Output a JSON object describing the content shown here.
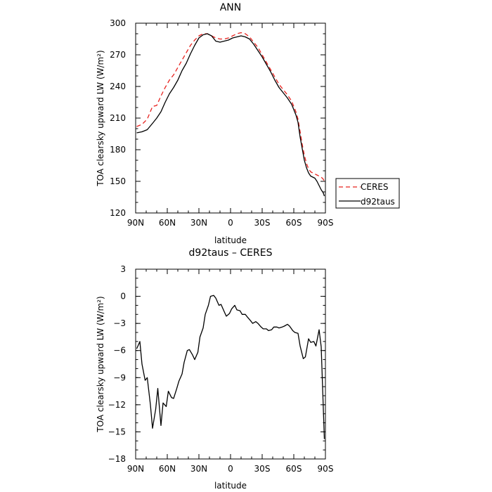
{
  "chart_data": [
    {
      "type": "line",
      "title": "ANN",
      "xlabel": "latitude",
      "ylabel": "TOA clearsky upward LW (W/m²)",
      "xlim": [
        90,
        -90
      ],
      "ylim": [
        120,
        300
      ],
      "xticks": [
        90,
        60,
        30,
        0,
        -30,
        -60,
        -90
      ],
      "xtick_labels": [
        "90N",
        "60N",
        "30N",
        "0",
        "30S",
        "60S",
        "90S"
      ],
      "yticks": [
        120,
        150,
        180,
        210,
        240,
        270,
        300
      ],
      "ytick_labels": [
        "120",
        "150",
        "180",
        "210",
        "240",
        "270",
        "300"
      ],
      "legend_position": "right-outside-bottom",
      "series": [
        {
          "name": "CERES",
          "color": "#e8231f",
          "style": "dashed",
          "x": [
            89,
            84,
            79,
            74,
            70,
            66,
            62,
            58,
            54,
            50,
            46,
            42,
            38,
            34,
            30,
            26,
            22,
            18,
            14,
            10,
            6,
            2,
            -2,
            -6,
            -10,
            -14,
            -18,
            -22,
            -26,
            -30,
            -34,
            -38,
            -42,
            -46,
            -50,
            -54,
            -58,
            -62,
            -64,
            -66,
            -68,
            -70,
            -72,
            -74,
            -76,
            -78,
            -80,
            -82,
            -84,
            -86,
            -88,
            -89
          ],
          "values": [
            202,
            204,
            209,
            221,
            222,
            231,
            239,
            246,
            251,
            258,
            265,
            272,
            279,
            284,
            288,
            290,
            290,
            288,
            286,
            285,
            285,
            286,
            288,
            290,
            291,
            290,
            287,
            282,
            277,
            270,
            263,
            256,
            249,
            242,
            237,
            232,
            226,
            216,
            209,
            197,
            185,
            175,
            167,
            162,
            159,
            158,
            157,
            156,
            155,
            154,
            152,
            150
          ]
        },
        {
          "name": "d92taus",
          "color": "#000000",
          "style": "solid",
          "x": [
            89,
            84,
            79,
            74,
            70,
            66,
            62,
            58,
            54,
            50,
            46,
            42,
            38,
            34,
            30,
            26,
            22,
            18,
            14,
            10,
            6,
            2,
            -2,
            -6,
            -10,
            -14,
            -18,
            -22,
            -26,
            -30,
            -34,
            -38,
            -42,
            -46,
            -50,
            -54,
            -58,
            -62,
            -64,
            -66,
            -68,
            -70,
            -72,
            -74,
            -76,
            -78,
            -80,
            -82,
            -84,
            -86,
            -88,
            -89
          ],
          "values": [
            196,
            197,
            199,
            205,
            210,
            216,
            225,
            233,
            239,
            246,
            255,
            262,
            271,
            279,
            286,
            289,
            290,
            288,
            283,
            282,
            283,
            284,
            286,
            287,
            288,
            287,
            285,
            280,
            274,
            268,
            261,
            254,
            246,
            239,
            234,
            229,
            223,
            213,
            206,
            192,
            181,
            170,
            163,
            158,
            155,
            154,
            153,
            150,
            146,
            142,
            139,
            136
          ]
        }
      ]
    },
    {
      "type": "line",
      "title": "d92taus – CERES",
      "xlabel": "latitude",
      "ylabel": "TOA clearsky upward LW (W/m²)",
      "xlim": [
        90,
        -90
      ],
      "ylim": [
        -18,
        3
      ],
      "xticks": [
        90,
        60,
        30,
        0,
        -30,
        -60,
        -90
      ],
      "xtick_labels": [
        "90N",
        "60N",
        "30N",
        "0",
        "30S",
        "60S",
        "90S"
      ],
      "yticks": [
        3,
        0,
        -3,
        -6,
        -9,
        -12,
        -15,
        -18
      ],
      "ytick_labels": [
        "3",
        "0",
        "−3",
        "−6",
        "−9",
        "−12",
        "−15",
        "−18"
      ],
      "series": [
        {
          "color": "#000000",
          "style": "solid",
          "x": [
            89,
            86,
            84,
            81,
            79,
            76,
            74,
            71,
            69,
            66,
            64,
            61,
            59,
            56,
            54,
            51,
            49,
            46,
            44,
            41,
            39,
            36,
            34,
            31,
            29,
            26,
            24,
            21,
            19,
            16,
            14,
            11,
            9,
            6,
            4,
            1,
            -1,
            -4,
            -6,
            -9,
            -11,
            -14,
            -16,
            -19,
            -21,
            -24,
            -26,
            -29,
            -31,
            -34,
            -36,
            -39,
            -41,
            -44,
            -46,
            -49,
            -51,
            -54,
            -56,
            -59,
            -61,
            -64,
            -66,
            -69,
            -71,
            -74,
            -76,
            -79,
            -81,
            -84,
            -86,
            -89
          ],
          "values": [
            -5.8,
            -5.0,
            -7.5,
            -9.3,
            -9.0,
            -12.0,
            -14.6,
            -12.5,
            -10.2,
            -14.3,
            -11.8,
            -12.2,
            -10.5,
            -11.2,
            -11.3,
            -10.2,
            -9.4,
            -8.6,
            -7.3,
            -6.0,
            -5.9,
            -6.5,
            -7.0,
            -6.2,
            -4.5,
            -3.5,
            -2.0,
            -1.0,
            0.0,
            0.1,
            -0.2,
            -1.0,
            -0.9,
            -1.7,
            -2.2,
            -1.9,
            -1.4,
            -1.0,
            -1.5,
            -1.6,
            -2.0,
            -2.0,
            -2.3,
            -2.7,
            -3.0,
            -2.8,
            -3.0,
            -3.4,
            -3.6,
            -3.6,
            -3.8,
            -3.7,
            -3.4,
            -3.4,
            -3.5,
            -3.4,
            -3.3,
            -3.1,
            -3.3,
            -3.8,
            -4.0,
            -4.1,
            -5.5,
            -6.9,
            -6.7,
            -4.7,
            -5.1,
            -5.0,
            -5.5,
            -3.7,
            -5.6,
            -15.8
          ]
        }
      ]
    }
  ]
}
